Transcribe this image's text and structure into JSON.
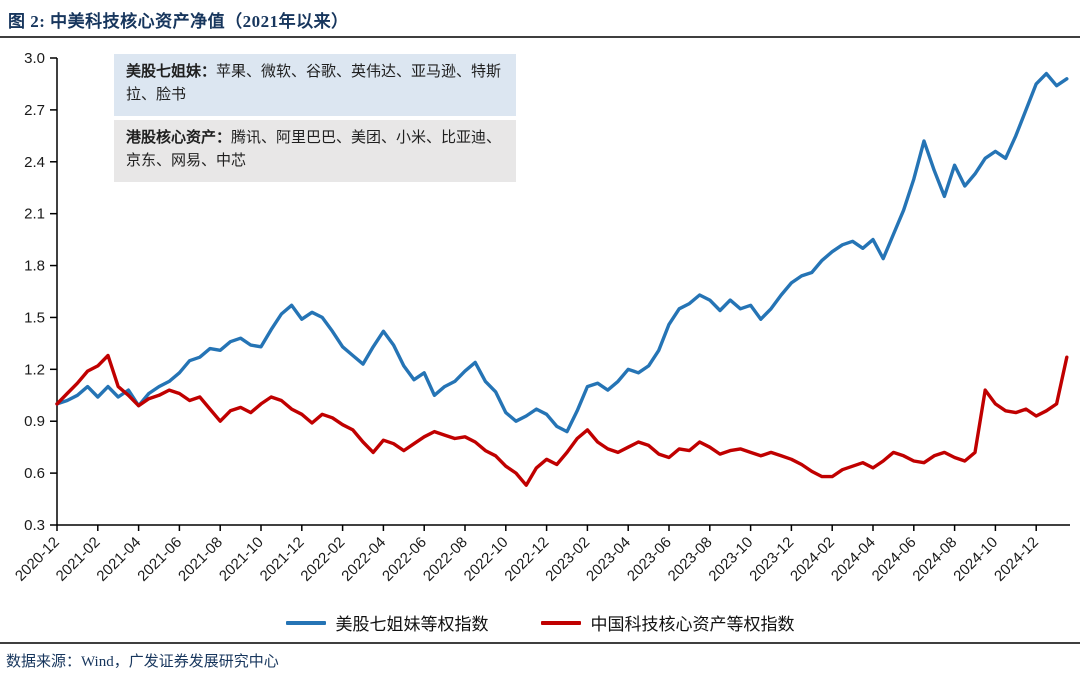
{
  "figure": {
    "title": "图 2:  中美科技核心资产净值（2021年以来）",
    "source": "数据来源：Wind，广发证券发展研究中心"
  },
  "annotations": [
    {
      "label": "美股七姐妹：",
      "text": "苹果、微软、谷歌、英伟达、亚马逊、特斯拉、脸书",
      "bg": "#dce6f1"
    },
    {
      "label": "港股核心资产：",
      "text": "腾讯、阿里巴巴、美团、小米、比亚迪、京东、网易、中芯",
      "bg": "#e8e7e7"
    }
  ],
  "legend": [
    {
      "label": "美股七姐妹等权指数",
      "color": "#2574b5"
    },
    {
      "label": "中国科技核心资产等权指数",
      "color": "#c00000"
    }
  ],
  "chart_data": {
    "type": "line",
    "title": "中美科技核心资产净值（2021年以来）",
    "xlabel": "",
    "ylabel": "",
    "ylim": [
      0.3,
      3.0
    ],
    "y_ticks": [
      0.3,
      0.6,
      0.9,
      1.2,
      1.5,
      1.8,
      2.1,
      2.4,
      2.7,
      3.0
    ],
    "x_tick_labels": [
      "2020-12",
      "2021-02",
      "2021-04",
      "2021-06",
      "2021-08",
      "2021-10",
      "2021-12",
      "2022-02",
      "2022-04",
      "2022-06",
      "2022-08",
      "2022-10",
      "2022-12",
      "2023-02",
      "2023-04",
      "2023-06",
      "2023-08",
      "2023-10",
      "2023-12",
      "2024-02",
      "2024-04",
      "2024-06",
      "2024-08",
      "2024-10",
      "2024-12"
    ],
    "x_unit": "half-month samples starting 2020-12, ending mid 2025-01",
    "x_interval_months": 0.5,
    "grid": false,
    "legend_position": "bottom",
    "series": [
      {
        "name": "美股七姐妹等权指数",
        "color": "#2574b5",
        "values": [
          1.0,
          1.02,
          1.05,
          1.1,
          1.04,
          1.1,
          1.04,
          1.08,
          0.99,
          1.06,
          1.1,
          1.13,
          1.18,
          1.25,
          1.27,
          1.32,
          1.31,
          1.36,
          1.38,
          1.34,
          1.33,
          1.43,
          1.52,
          1.57,
          1.49,
          1.53,
          1.5,
          1.42,
          1.33,
          1.28,
          1.23,
          1.33,
          1.42,
          1.34,
          1.22,
          1.14,
          1.18,
          1.05,
          1.1,
          1.13,
          1.19,
          1.24,
          1.13,
          1.07,
          0.95,
          0.9,
          0.93,
          0.97,
          0.94,
          0.87,
          0.84,
          0.96,
          1.1,
          1.12,
          1.08,
          1.13,
          1.2,
          1.18,
          1.22,
          1.31,
          1.46,
          1.55,
          1.58,
          1.63,
          1.6,
          1.54,
          1.6,
          1.55,
          1.57,
          1.49,
          1.55,
          1.63,
          1.7,
          1.74,
          1.76,
          1.83,
          1.88,
          1.92,
          1.94,
          1.9,
          1.95,
          1.84,
          1.98,
          2.12,
          2.3,
          2.52,
          2.35,
          2.2,
          2.38,
          2.26,
          2.33,
          2.42,
          2.46,
          2.42,
          2.55,
          2.7,
          2.85,
          2.91,
          2.84,
          2.88
        ]
      },
      {
        "name": "中国科技核心资产等权指数",
        "color": "#c00000",
        "values": [
          1.0,
          1.06,
          1.12,
          1.19,
          1.22,
          1.28,
          1.1,
          1.05,
          0.99,
          1.03,
          1.05,
          1.08,
          1.06,
          1.02,
          1.04,
          0.97,
          0.9,
          0.96,
          0.98,
          0.95,
          1.0,
          1.04,
          1.02,
          0.97,
          0.94,
          0.89,
          0.94,
          0.92,
          0.88,
          0.85,
          0.78,
          0.72,
          0.79,
          0.77,
          0.73,
          0.77,
          0.81,
          0.84,
          0.82,
          0.8,
          0.81,
          0.78,
          0.73,
          0.7,
          0.64,
          0.6,
          0.53,
          0.63,
          0.68,
          0.65,
          0.72,
          0.8,
          0.85,
          0.78,
          0.74,
          0.72,
          0.75,
          0.78,
          0.76,
          0.71,
          0.69,
          0.74,
          0.73,
          0.78,
          0.75,
          0.71,
          0.73,
          0.74,
          0.72,
          0.7,
          0.72,
          0.7,
          0.68,
          0.65,
          0.61,
          0.58,
          0.58,
          0.62,
          0.64,
          0.66,
          0.63,
          0.67,
          0.72,
          0.7,
          0.67,
          0.66,
          0.7,
          0.72,
          0.69,
          0.67,
          0.72,
          1.08,
          1.0,
          0.96,
          0.95,
          0.97,
          0.93,
          0.96,
          1.0,
          1.27
        ]
      }
    ]
  }
}
